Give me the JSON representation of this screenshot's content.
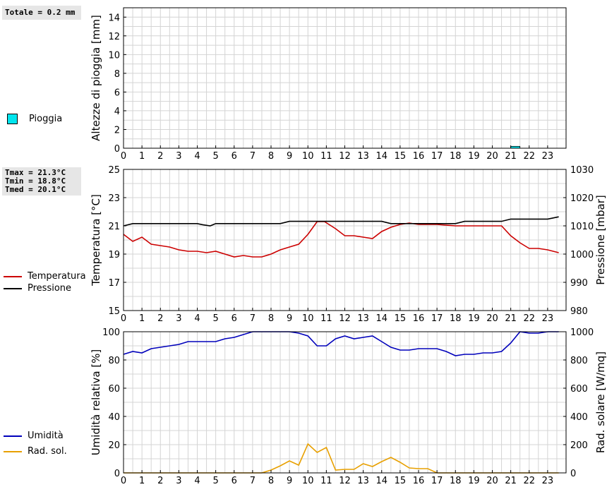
{
  "rain_panel": {
    "summary": "Totale = 0.2 mm",
    "legend_label": "Pioggia",
    "legend_color": "#00e5ee"
  },
  "temp_panel": {
    "stats": [
      "Tmax = 21.3°C",
      "Tmin = 18.8°C",
      "Tmed = 20.1°C"
    ],
    "legend": [
      {
        "label": "Temperatura",
        "color": "#cc0000"
      },
      {
        "label": "Pressione",
        "color": "#000000"
      }
    ]
  },
  "humidity_panel": {
    "legend": [
      {
        "label": "Umidità",
        "color": "#0000bb"
      },
      {
        "label": "Rad. sol.",
        "color": "#e8a000"
      }
    ]
  },
  "chart_data": [
    {
      "type": "bar",
      "ylabel": "Altezze di pioggia [mm]",
      "xlim": [
        0,
        24
      ],
      "ylim": [
        0,
        15
      ],
      "yticks": [
        0,
        2,
        4,
        6,
        8,
        10,
        12,
        14
      ],
      "xticks": [
        0,
        1,
        2,
        3,
        4,
        5,
        6,
        7,
        8,
        9,
        10,
        11,
        12,
        13,
        14,
        15,
        16,
        17,
        18,
        19,
        20,
        21,
        22,
        23
      ],
      "grid": true,
      "series": [
        {
          "name": "Pioggia",
          "color": "#00e5ee",
          "bars": [
            {
              "x0": 21.0,
              "x1": 21.5,
              "value": 0.2
            }
          ]
        }
      ]
    },
    {
      "type": "line",
      "ylabel": "Temperatura [°C]",
      "y2label": "Pressione [mbar]",
      "xlim": [
        0,
        24
      ],
      "ylim": [
        15,
        25
      ],
      "y2lim": [
        980,
        1030
      ],
      "yticks": [
        15,
        17,
        19,
        21,
        23,
        25
      ],
      "y2ticks": [
        980,
        990,
        1000,
        1010,
        1020,
        1030
      ],
      "xticks": [
        0,
        1,
        2,
        3,
        4,
        5,
        6,
        7,
        8,
        9,
        10,
        11,
        12,
        13,
        14,
        15,
        16,
        17,
        18,
        19,
        20,
        21,
        22,
        23
      ],
      "grid": true,
      "series": [
        {
          "name": "Temperatura",
          "color": "#cc0000",
          "axis": "left",
          "x": [
            0,
            0.5,
            1,
            1.5,
            2,
            2.5,
            3,
            3.5,
            4,
            4.5,
            5,
            5.5,
            6,
            6.5,
            7,
            7.5,
            8,
            8.5,
            9,
            9.5,
            10,
            10.5,
            10.9,
            11.5,
            12,
            12.5,
            13,
            13.5,
            14,
            14.5,
            15,
            15.5,
            16,
            16.5,
            17,
            18,
            19,
            20,
            20.5,
            21,
            21.5,
            22,
            22.5,
            23,
            23.6
          ],
          "y": [
            20.4,
            19.9,
            20.2,
            19.7,
            19.6,
            19.5,
            19.3,
            19.2,
            19.2,
            19.1,
            19.2,
            19.0,
            18.8,
            18.9,
            18.8,
            18.8,
            19.0,
            19.3,
            19.5,
            19.7,
            20.4,
            21.3,
            21.3,
            20.8,
            20.3,
            20.3,
            20.2,
            20.1,
            20.6,
            20.9,
            21.1,
            21.2,
            21.1,
            21.1,
            21.1,
            21.0,
            21.0,
            21.0,
            21.0,
            20.3,
            19.8,
            19.4,
            19.4,
            19.3,
            19.1
          ]
        },
        {
          "name": "Pressione",
          "color": "#000000",
          "axis": "right",
          "x": [
            0,
            0.5,
            1,
            2,
            3,
            4,
            4.3,
            4.7,
            5,
            6,
            7,
            8,
            8.5,
            9,
            10,
            11,
            12,
            13,
            14,
            14.5,
            15,
            16,
            17,
            18,
            18.5,
            19,
            20,
            20.5,
            21,
            22,
            23,
            23.6
          ],
          "y": [
            1010,
            1010.8,
            1010.8,
            1010.8,
            1010.8,
            1010.8,
            1010.4,
            1010.0,
            1010.8,
            1010.8,
            1010.8,
            1010.8,
            1010.8,
            1011.6,
            1011.6,
            1011.6,
            1011.6,
            1011.6,
            1011.6,
            1010.8,
            1010.8,
            1010.8,
            1010.8,
            1010.8,
            1011.6,
            1011.6,
            1011.6,
            1011.6,
            1012.4,
            1012.4,
            1012.4,
            1013.2
          ]
        }
      ]
    },
    {
      "type": "line",
      "ylabel": "Umidità relativa [%]",
      "y2label": "Rad. solare [W/mq]",
      "xlim": [
        0,
        24
      ],
      "ylim": [
        0,
        100
      ],
      "y2lim": [
        0,
        1000
      ],
      "yticks": [
        0,
        20,
        40,
        60,
        80,
        100
      ],
      "y2ticks": [
        0,
        200,
        400,
        600,
        800,
        1000
      ],
      "xticks": [
        0,
        1,
        2,
        3,
        4,
        5,
        6,
        7,
        8,
        9,
        10,
        11,
        12,
        13,
        14,
        15,
        16,
        17,
        18,
        19,
        20,
        21,
        22,
        23
      ],
      "grid": true,
      "series": [
        {
          "name": "Umidità",
          "color": "#0000bb",
          "axis": "left",
          "x": [
            0,
            0.5,
            1,
            1.5,
            2,
            3,
            3.5,
            4,
            5,
            5.5,
            6,
            6.5,
            7,
            7.5,
            8,
            8.5,
            9,
            9.5,
            10,
            10.5,
            11,
            11.5,
            12,
            12.5,
            13,
            13.5,
            14,
            14.5,
            15,
            15.5,
            16,
            16.5,
            17,
            17.5,
            18,
            18.5,
            19,
            19.5,
            20,
            20.5,
            21,
            21.5,
            22,
            22.5,
            23,
            23.6
          ],
          "y": [
            84,
            86,
            85,
            88,
            89,
            91,
            93,
            93,
            93,
            95,
            96,
            98,
            100,
            100,
            100,
            100,
            100,
            99,
            97,
            90,
            90,
            95,
            97,
            95,
            96,
            97,
            93,
            89,
            87,
            87,
            88,
            88,
            88,
            86,
            83,
            84,
            84,
            85,
            85,
            86,
            92,
            100,
            99,
            99,
            100,
            100
          ]
        },
        {
          "name": "Rad. sol.",
          "color": "#e8a000",
          "axis": "right",
          "x": [
            0,
            1,
            2,
            3,
            4,
            5,
            6,
            7,
            7.5,
            8,
            8.5,
            9,
            9.5,
            10,
            10.5,
            11,
            11.5,
            12,
            12.5,
            13,
            13.5,
            14,
            14.5,
            15,
            15.5,
            16,
            16.5,
            17,
            18,
            19,
            20,
            21,
            22,
            23,
            23.6
          ],
          "y": [
            0,
            0,
            0,
            0,
            0,
            0,
            0,
            0,
            0,
            20,
            50,
            85,
            55,
            205,
            145,
            180,
            20,
            25,
            25,
            65,
            45,
            80,
            110,
            75,
            35,
            30,
            30,
            0,
            0,
            0,
            0,
            0,
            0,
            0,
            0
          ]
        }
      ]
    }
  ]
}
